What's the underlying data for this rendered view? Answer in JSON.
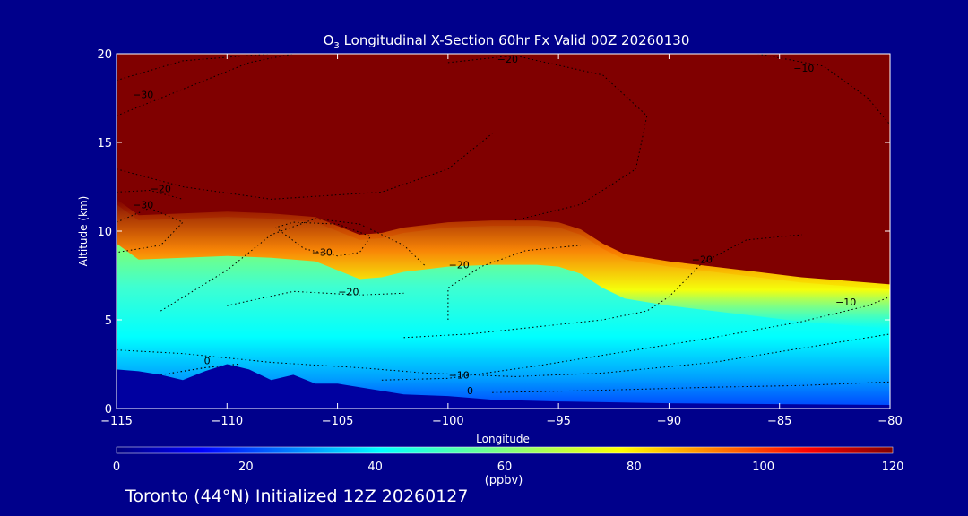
{
  "chart_data": {
    "type": "heatmap",
    "title_main": "O",
    "title_sub": "3",
    "title_rest": " Longitudinal X-Section 60hr  Fx Valid 00Z 20260130",
    "xlabel": "Longitude",
    "ylabel": "Altitude (km)",
    "xlim": [
      -115,
      -80
    ],
    "ylim": [
      0,
      20
    ],
    "x_ticks": [
      -115,
      -110,
      -105,
      -100,
      -95,
      -90,
      -85,
      -80
    ],
    "x_tick_labels": [
      "−115",
      "−110",
      "−105",
      "−100",
      "−95",
      "−90",
      "−85",
      "−80"
    ],
    "y_ticks": [
      0,
      5,
      10,
      15,
      20
    ],
    "y_tick_labels": [
      "0",
      "5",
      "10",
      "15",
      "20"
    ],
    "colorbar": {
      "min": 0,
      "max": 120,
      "ticks": [
        0,
        20,
        40,
        60,
        80,
        100,
        120
      ],
      "tick_labels": [
        "0",
        "20",
        "40",
        "60",
        "80",
        "100",
        "120"
      ],
      "unit": "(ppbv)"
    },
    "tropopause_km": [
      [
        -115,
        11.5
      ],
      [
        -114,
        10.6
      ],
      [
        -112,
        10.7
      ],
      [
        -110,
        10.8
      ],
      [
        -108,
        10.7
      ],
      [
        -106,
        10.5
      ],
      [
        -105,
        10.0
      ],
      [
        -104,
        9.5
      ],
      [
        -103,
        9.6
      ],
      [
        -102,
        9.9
      ],
      [
        -100,
        10.2
      ],
      [
        -98,
        10.3
      ],
      [
        -96,
        10.3
      ],
      [
        -95,
        10.2
      ],
      [
        -94,
        9.8
      ],
      [
        -93,
        9.0
      ],
      [
        -92,
        8.4
      ],
      [
        -90,
        8.0
      ],
      [
        -88,
        7.7
      ],
      [
        -86,
        7.4
      ],
      [
        -84,
        7.1
      ],
      [
        -82,
        6.9
      ],
      [
        -80,
        6.7
      ]
    ],
    "terrain_km": [
      [
        -115,
        2.2
      ],
      [
        -114,
        2.1
      ],
      [
        -113,
        1.9
      ],
      [
        -112,
        1.6
      ],
      [
        -111,
        2.1
      ],
      [
        -110,
        2.5
      ],
      [
        -109,
        2.2
      ],
      [
        -108,
        1.6
      ],
      [
        -107,
        1.9
      ],
      [
        -106,
        1.4
      ],
      [
        -105,
        1.4
      ],
      [
        -104,
        1.2
      ],
      [
        -103,
        1.0
      ],
      [
        -102,
        0.8
      ],
      [
        -100,
        0.7
      ],
      [
        -98,
        0.5
      ],
      [
        -95,
        0.4
      ],
      [
        -90,
        0.3
      ],
      [
        -85,
        0.25
      ],
      [
        -80,
        0.2
      ]
    ],
    "contour_labels": [
      {
        "text": "−20",
        "lon": -97.3,
        "alt": 19.5
      },
      {
        "text": "−10",
        "lon": -83.9,
        "alt": 19.0
      },
      {
        "text": "−30",
        "lon": -113.8,
        "alt": 17.5
      },
      {
        "text": "−20",
        "lon": -113.0,
        "alt": 12.2
      },
      {
        "text": "−30",
        "lon": -113.8,
        "alt": 11.3
      },
      {
        "text": "−30",
        "lon": -105.7,
        "alt": 8.6
      },
      {
        "text": "−20",
        "lon": -104.5,
        "alt": 6.4
      },
      {
        "text": "−20",
        "lon": -99.5,
        "alt": 7.9
      },
      {
        "text": "−20",
        "lon": -88.5,
        "alt": 8.2
      },
      {
        "text": "−10",
        "lon": -82.0,
        "alt": 5.8
      },
      {
        "text": "−10",
        "lon": -99.5,
        "alt": 1.7
      },
      {
        "text": "0",
        "lon": -110.9,
        "alt": 2.5
      },
      {
        "text": "0",
        "lon": -99.0,
        "alt": 0.8
      }
    ]
  },
  "footer": {
    "text": "Toronto (44°N) Initialized 12Z 20260127"
  }
}
